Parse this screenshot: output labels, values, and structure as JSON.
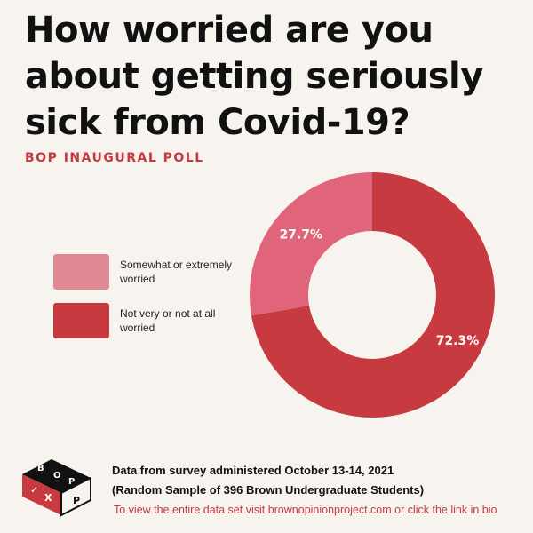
{
  "title": "How worried are you about getting seriously sick from Covid-19?",
  "subtitle": "BOP INAUGURAL POLL",
  "footer": {
    "line1": "Data from survey administered October 13-14, 2021",
    "line2": "(Random Sample of 396 Brown Undergraduate Students)",
    "link_text": "To view the entire data set visit brownopinionproject.com or click the link in bio"
  },
  "logo": {
    "letters": [
      "B",
      "O",
      "P",
      "✓",
      "X",
      "P"
    ]
  },
  "colors": {
    "background": "#f7f3ee",
    "accent": "#c73a40",
    "somewhat": "#e0647a",
    "not_very": "#c73a40",
    "somewhat_swatch": "#e08a94",
    "not_very_swatch": "#c73a40"
  },
  "chart_data": {
    "type": "pie",
    "donut": true,
    "categories": [
      "Somewhat or extremely worried",
      "Not very or not at all worried"
    ],
    "values": [
      27.7,
      72.3
    ],
    "labels": [
      "27.7%",
      "72.3%"
    ],
    "legend": [
      "Somewhat or extremely worried",
      "Not very or not at all worried"
    ],
    "legend_position": "left"
  }
}
